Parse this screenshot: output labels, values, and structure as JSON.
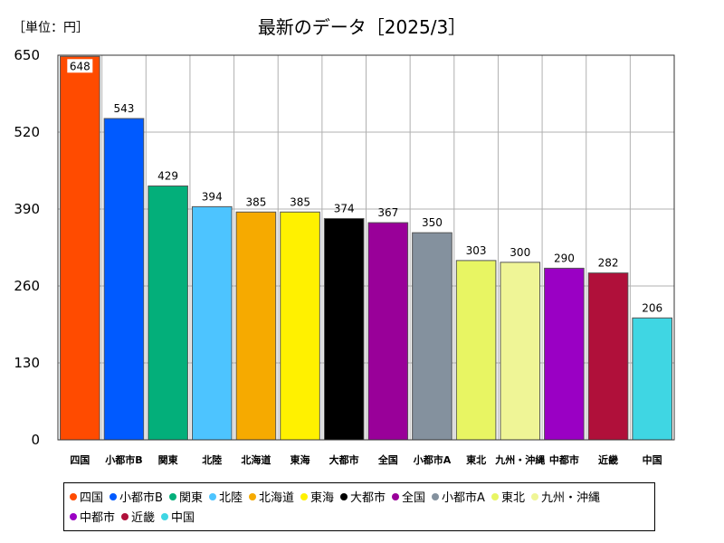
{
  "chart_data": {
    "type": "bar",
    "unit_label": "［単位：円］",
    "title": "最新のデータ［2025/3］",
    "categories": [
      "四国",
      "小都市B",
      "関東",
      "北陸",
      "北海道",
      "東海",
      "大都市",
      "全国",
      "小都市A",
      "東北",
      "九州・沖縄",
      "中都市",
      "近畿",
      "中国"
    ],
    "values": [
      648,
      543,
      429,
      394,
      385,
      385,
      374,
      367,
      350,
      303,
      300,
      290,
      282,
      206
    ],
    "colors": [
      "#ff4b00",
      "#005aff",
      "#03af7a",
      "#4dc4ff",
      "#f6aa00",
      "#fff100",
      "#000000",
      "#990099",
      "#84919e",
      "#e8f563",
      "#eff596",
      "#9a00c4",
      "#b0103a",
      "#3fd6e3"
    ],
    "ylim": [
      0,
      650
    ],
    "yticks": [
      0,
      130,
      260,
      390,
      520,
      650
    ],
    "grid": true,
    "legend_position": "bottom"
  }
}
